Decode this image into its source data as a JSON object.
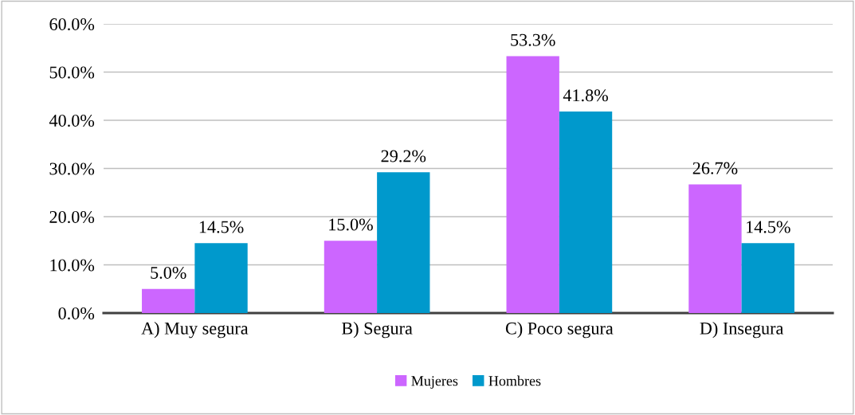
{
  "chart_data": {
    "type": "bar",
    "categories": [
      "A) Muy segura",
      "B) Segura",
      "C) Poco segura",
      "D) Insegura"
    ],
    "series": [
      {
        "name": "Mujeres",
        "color": "#cc66ff",
        "values": [
          5.0,
          15.0,
          53.3,
          26.7
        ],
        "value_labels": [
          "5.0%",
          "15.0%",
          "53.3%",
          "26.7%"
        ]
      },
      {
        "name": "Hombres",
        "color": "#0099cc",
        "values": [
          14.5,
          29.2,
          41.8,
          14.5
        ],
        "value_labels": [
          "14.5%",
          "29.2%",
          "41.8%",
          "14.5%"
        ]
      }
    ],
    "ylim": [
      0,
      60
    ],
    "yticks": [
      {
        "value": 0,
        "label": "0.0%"
      },
      {
        "value": 10,
        "label": "10.0%"
      },
      {
        "value": 20,
        "label": "20.0%"
      },
      {
        "value": 30,
        "label": "30.0%"
      },
      {
        "value": 40,
        "label": "40.0%"
      },
      {
        "value": 50,
        "label": "50.0%"
      },
      {
        "value": 60,
        "label": "60.0%"
      }
    ],
    "grid": "y",
    "legend": "bottom"
  }
}
